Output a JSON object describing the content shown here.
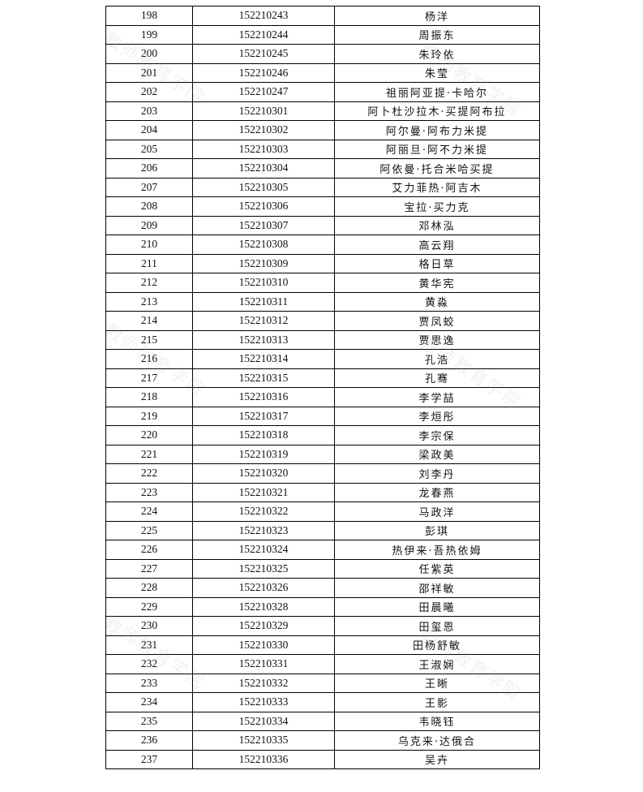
{
  "watermark": "教师教育学院",
  "rows": [
    [
      "198",
      "152210243",
      "杨洋"
    ],
    [
      "199",
      "152210244",
      "周振东"
    ],
    [
      "200",
      "152210245",
      "朱玲依"
    ],
    [
      "201",
      "152210246",
      "朱莹"
    ],
    [
      "202",
      "152210247",
      "祖丽阿亚提·卡哈尔"
    ],
    [
      "203",
      "152210301",
      "阿卜杜沙拉木·买提阿布拉"
    ],
    [
      "204",
      "152210302",
      "阿尔曼·阿布力米提"
    ],
    [
      "205",
      "152210303",
      "阿丽旦·阿不力米提"
    ],
    [
      "206",
      "152210304",
      "阿依曼·托合米哈买提"
    ],
    [
      "207",
      "152210305",
      "艾力菲热·阿吉木"
    ],
    [
      "208",
      "152210306",
      "宝拉·买力克"
    ],
    [
      "209",
      "152210307",
      "邓林泓"
    ],
    [
      "210",
      "152210308",
      "高云翔"
    ],
    [
      "211",
      "152210309",
      "格日草"
    ],
    [
      "212",
      "152210310",
      "黄华宪"
    ],
    [
      "213",
      "152210311",
      "黄淼"
    ],
    [
      "214",
      "152210312",
      "贾凤蛟"
    ],
    [
      "215",
      "152210313",
      "贾思逸"
    ],
    [
      "216",
      "152210314",
      "孔浩"
    ],
    [
      "217",
      "152210315",
      "孔骞"
    ],
    [
      "218",
      "152210316",
      "李学喆"
    ],
    [
      "219",
      "152210317",
      "李烜彤"
    ],
    [
      "220",
      "152210318",
      "李宗保"
    ],
    [
      "221",
      "152210319",
      "梁政美"
    ],
    [
      "222",
      "152210320",
      "刘李丹"
    ],
    [
      "223",
      "152210321",
      "龙春燕"
    ],
    [
      "224",
      "152210322",
      "马政洋"
    ],
    [
      "225",
      "152210323",
      "彭琪"
    ],
    [
      "226",
      "152210324",
      "热伊来·吾热依姆"
    ],
    [
      "227",
      "152210325",
      "任紫英"
    ],
    [
      "228",
      "152210326",
      "邵祥敏"
    ],
    [
      "229",
      "152210328",
      "田晨曦"
    ],
    [
      "230",
      "152210329",
      "田玺恩"
    ],
    [
      "231",
      "152210330",
      "田杨舒敏"
    ],
    [
      "232",
      "152210331",
      "王淑娴"
    ],
    [
      "233",
      "152210332",
      "王晰"
    ],
    [
      "234",
      "152210333",
      "王影"
    ],
    [
      "235",
      "152210334",
      "韦晓钰"
    ],
    [
      "236",
      "152210335",
      "乌克来·达俄合"
    ],
    [
      "237",
      "152210336",
      "吴卉"
    ]
  ]
}
